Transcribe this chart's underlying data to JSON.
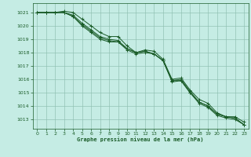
{
  "title": "Graphe pression niveau de la mer (hPa)",
  "background_color": "#c5ece4",
  "grid_color": "#8fbfb0",
  "line_color": "#1a5c28",
  "ylim": [
    1012.3,
    1021.7
  ],
  "xlim": [
    -0.5,
    23.5
  ],
  "yticks": [
    1013,
    1014,
    1015,
    1016,
    1017,
    1018,
    1019,
    1020,
    1021
  ],
  "xticks": [
    0,
    1,
    2,
    3,
    4,
    5,
    6,
    7,
    8,
    9,
    10,
    11,
    12,
    13,
    14,
    15,
    16,
    17,
    18,
    19,
    20,
    21,
    22,
    23
  ],
  "series": [
    [
      1021.0,
      1021.0,
      1021.0,
      1021.1,
      1021.0,
      1020.5,
      1020.0,
      1019.5,
      1019.2,
      1019.2,
      1018.5,
      1018.0,
      1018.2,
      1018.1,
      1017.5,
      1016.0,
      1016.1,
      1015.2,
      1014.5,
      1014.2,
      1013.5,
      1013.2,
      1013.2,
      1012.8
    ],
    [
      1021.0,
      1021.0,
      1021.0,
      1021.0,
      1020.8,
      1020.2,
      1019.7,
      1019.2,
      1019.0,
      1018.9,
      1018.3,
      1018.0,
      1018.1,
      1017.9,
      1017.4,
      1015.9,
      1016.0,
      1015.1,
      1014.3,
      1014.0,
      1013.4,
      1013.2,
      1013.1,
      1012.6
    ],
    [
      1021.0,
      1021.0,
      1021.0,
      1021.0,
      1020.7,
      1020.1,
      1019.6,
      1019.1,
      1018.9,
      1018.8,
      1018.3,
      1018.0,
      1018.1,
      1017.9,
      1017.4,
      1015.9,
      1015.9,
      1015.0,
      1014.3,
      1014.0,
      1013.4,
      1013.2,
      1013.1,
      1012.6
    ],
    [
      1021.0,
      1021.0,
      1021.0,
      1021.0,
      1020.7,
      1020.0,
      1019.5,
      1019.0,
      1018.8,
      1018.8,
      1018.2,
      1017.9,
      1018.0,
      1017.9,
      1017.4,
      1015.8,
      1015.9,
      1015.0,
      1014.2,
      1013.9,
      1013.3,
      1013.1,
      1013.0,
      1012.6
    ]
  ]
}
